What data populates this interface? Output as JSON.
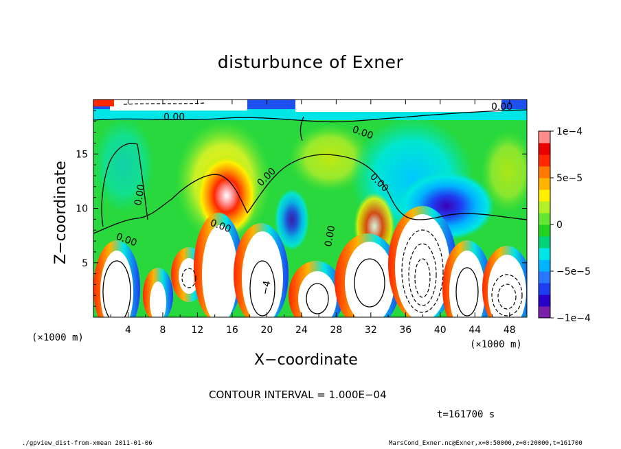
{
  "chart_data": {
    "type": "heatmap",
    "title": "disturbunce of Exner",
    "xlabel": "X−coordinate",
    "ylabel": "Z−coordinate",
    "x_unit": "(×1000 m)",
    "z_unit": "(×1000 m)",
    "xlim": [
      0,
      50
    ],
    "ylim": [
      0,
      20
    ],
    "x_ticks": [
      4,
      8,
      12,
      16,
      20,
      24,
      28,
      32,
      36,
      40,
      44,
      48
    ],
    "y_ticks": [
      5,
      10,
      15
    ],
    "colorbar": {
      "min": -0.0001,
      "max": 0.0001,
      "tick_values": [
        0.0001,
        5e-05,
        0,
        -5e-05,
        -0.0001
      ],
      "tick_labels": [
        "1e−4",
        "5e−5",
        "0",
        "−5e−5",
        "−1e−4"
      ],
      "colors": [
        "#7a1fa8",
        "#2800c8",
        "#1e3cf0",
        "#2878ff",
        "#00b4ff",
        "#00e6e6",
        "#00d278",
        "#22d220",
        "#64e632",
        "#b4f028",
        "#fff000",
        "#ffb400",
        "#ff7800",
        "#ff2800",
        "#e60000",
        "#ff8c8c"
      ]
    },
    "contour_labels": [
      "0.00",
      "0.00",
      "0.00",
      "0.00",
      "0.00",
      "0.00",
      "0.00",
      "0.00",
      "0.00",
      "−4"
    ],
    "contour_interval_text": "CONTOUR INTERVAL = 1.000E−04",
    "time_text": "t=161700 s"
  },
  "footer": {
    "left": "./gpview_dist-from-xmean  2011-01-06",
    "right": "MarsCond_Exner.nc@Exner,x=0:50000,z=0:20000,t=161700"
  }
}
